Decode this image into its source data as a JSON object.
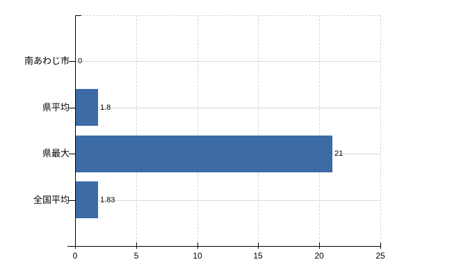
{
  "chart_data": {
    "type": "bar",
    "orientation": "horizontal",
    "title": "",
    "categories": [
      "南あわじ市",
      "県平均",
      "県最大",
      "全国平均"
    ],
    "values": [
      0,
      1.8,
      21,
      1.83
    ],
    "value_labels": [
      "0",
      "1.8",
      "21",
      "1.83"
    ],
    "xlim": [
      0,
      25
    ],
    "x_ticks": [
      0,
      5,
      10,
      15,
      20,
      25
    ],
    "x_tick_labels": [
      "0",
      "5",
      "10",
      "15",
      "20",
      "25"
    ],
    "ylabel": "",
    "xlabel": "",
    "legend": false,
    "grid": true,
    "colors": {
      "bar": "#3d6ba6",
      "gridline": "#d6d6d6",
      "axis": "#000000",
      "text": "#000000",
      "background": "#ffffff"
    }
  }
}
